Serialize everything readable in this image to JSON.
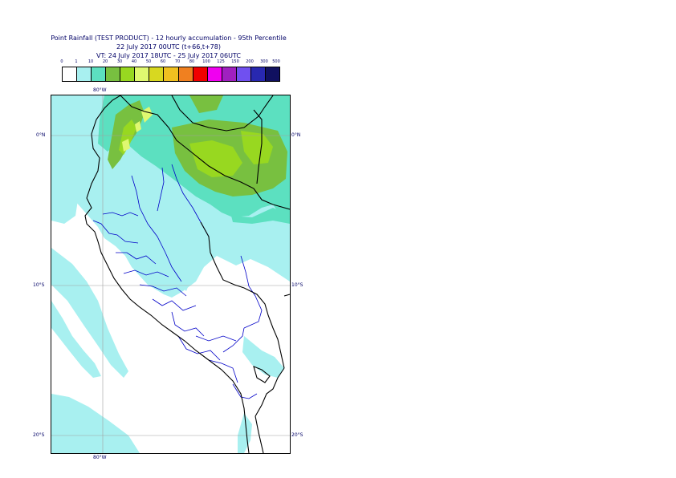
{
  "title": {
    "line1": "Point Rainfall (TEST PRODUCT) - 12 hourly accumulation - 95th Percentile",
    "line2": "22 July 2017 00UTC (t+66,t+78)",
    "line3": "VT: 24 July 2017 18UTC - 25 July 2017 06UTC"
  },
  "legend": {
    "labels": [
      "0",
      "1",
      "10",
      "20",
      "30",
      "40",
      "50",
      "60",
      "70",
      "80",
      "100",
      "125",
      "150",
      "200",
      "300",
      "500"
    ],
    "colors": [
      "#ffffff",
      "#a8f0f0",
      "#5ce0c0",
      "#78c040",
      "#98d820",
      "#e0f870",
      "#d8d820",
      "#f0c020",
      "#f08020",
      "#f00000",
      "#f000f0",
      "#a020c0",
      "#7050f0",
      "#2828b0",
      "#101060"
    ]
  },
  "axes": {
    "lon_top": "80°W",
    "lon_bottom": "80°W",
    "lat_left": [
      "0°N",
      "10°S",
      "20°S"
    ],
    "lat_right": [
      "0°N",
      "10°S",
      "20°S"
    ]
  },
  "colors": {
    "text": "#000066",
    "land_outline": "#000000",
    "region_boundary": "#0000c8",
    "grid": "#a0a0a0"
  }
}
